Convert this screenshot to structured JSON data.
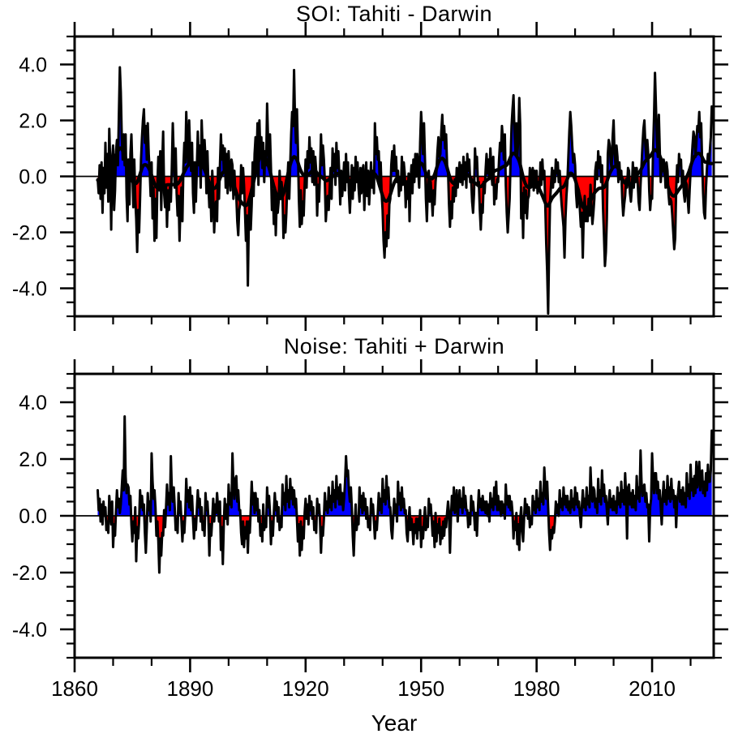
{
  "figure": {
    "background": "#ffffff",
    "x_axis_label": "Year",
    "text_color": "#000000"
  },
  "chart_data": [
    {
      "type": "area",
      "title": "SOI: Tahiti - Darwin",
      "xlabel": "",
      "ylabel": "",
      "x0": 1866.0,
      "dt": 0.25,
      "xlim": [
        1860,
        2026
      ],
      "ylim": [
        -5.0,
        5.0
      ],
      "grid": false,
      "legend": "none",
      "xtick_major": {
        "start": 1860,
        "step": 30,
        "labels": [
          "1860",
          "1890",
          "1920",
          "1950",
          "1980",
          "2010"
        ]
      },
      "xtick_minor_step": 10,
      "ytick_major": {
        "values": [
          -4,
          -2,
          0,
          2,
          4
        ],
        "labels": [
          "-4.0",
          "-2.0",
          "0.0",
          "2.0",
          "4.0"
        ]
      },
      "ytick_minor_step": 0.5,
      "positive_color": "#0000ff",
      "negative_color": "#ff0000",
      "line_color": "#000000",
      "smoothed_line": true,
      "smooth_window": 13,
      "smooth_passes": 2,
      "show_x_labels": false,
      "values": [
        -0.1,
        -0.6,
        0.4,
        -0.8,
        0.5,
        -1.3,
        0.3,
        -0.6,
        1.2,
        -0.4,
        0.8,
        -0.9,
        1.7,
        0.5,
        -1.9,
        0.6,
        1.1,
        -1.2,
        -0.5,
        0.9,
        1.3,
        0.4,
        2.2,
        3.9,
        3.0,
        1.4,
        0.6,
        1.5,
        0.4,
        1.5,
        -0.7,
        -1.6,
        0.6,
        -1.0,
        0.8,
        1.5,
        0.3,
        -1.1,
        0.6,
        -0.8,
        -1.5,
        -2.7,
        -1.2,
        -2.0,
        -0.8,
        0.6,
        1.4,
        2.0,
        2.4,
        1.2,
        1.8,
        0.6,
        1.9,
        0.8,
        0.2,
        -0.7,
        0.5,
        -1.5,
        -0.4,
        -2.3,
        -0.8,
        -2.2,
        -0.3,
        0.7,
        -0.5,
        0.9,
        -1.2,
        0.4,
        1.6,
        -0.6,
        -1.1,
        -0.3,
        -1.8,
        -0.5,
        -1.2,
        -0.4,
        -0.9,
        0.3,
        1.9,
        0.7,
        -0.4,
        1.0,
        -0.6,
        -1.4,
        -0.7,
        -2.3,
        -1.0,
        -0.4,
        -1.6,
        0.3,
        1.2,
        0.5,
        2.3,
        1.1,
        0.4,
        2.0,
        0.9,
        0.2,
        1.2,
        -0.6,
        -1.3,
        0.5,
        -0.9,
        0.3,
        1.6,
        0.4,
        1.1,
        -0.4,
        2.0,
        1.0,
        0.3,
        1.3,
        0.6,
        -0.6,
        0.9,
        -0.3,
        -1.1,
        -0.4,
        -1.6,
        0.2,
        -0.6,
        -2.0,
        -1.1,
        -0.9,
        -1.6,
        0.3,
        -0.8,
        0.4,
        1.5,
        0.6,
        1.1,
        0.2,
        1.0,
        -0.4,
        0.8,
        -0.6,
        0.9,
        0.1,
        -0.5,
        0.6,
        0.4,
        -0.8,
        0.2,
        -0.6,
        -0.7,
        -1.6,
        -2.1,
        -1.2,
        -1.0,
        0.4,
        -0.6,
        0.3,
        -0.3,
        -1.2,
        -2.3,
        -1.4,
        -3.9,
        -1.6,
        -0.8,
        -1.9,
        -1.0,
        0.5,
        -0.7,
        0.8,
        1.4,
        0.3,
        1.9,
        -0.3,
        2.0,
        0.8,
        1.4,
        0.3,
        1.2,
        -0.2,
        0.9,
        0.4,
        2.6,
        1.3,
        0.5,
        1.5,
        0.3,
        -1.2,
        -0.5,
        -1.7,
        -0.4,
        -2.1,
        -0.8,
        -1.3,
        -0.9,
        0.2,
        -0.7,
        -0.2,
        -0.6,
        -2.2,
        -1.4,
        -2.0,
        -1.3,
        -0.2,
        0.5,
        -0.8,
        0.4,
        1.5,
        2.3,
        1.8,
        3.8,
        2.0,
        1.2,
        2.4,
        1.0,
        -0.8,
        -1.8,
        -0.5,
        -1.7,
        -0.9,
        -1.4,
        -0.3,
        0.6,
        -0.4,
        0.9,
        0.3,
        1.4,
        0.5,
        1.0,
        -0.2,
        0.9,
        -0.3,
        0.7,
        0.2,
        -1.4,
        -0.3,
        -0.9,
        0.2,
        1.5,
        0.4,
        1.1,
        0.6,
        -0.2,
        -1.6,
        -1.0,
        -0.7,
        -1.2,
        -0.4,
        0.3,
        -0.8,
        1.0,
        0.2,
        0.8,
        -0.3,
        1.2,
        0.3,
        0.9,
        0.1,
        -1.0,
        0.2,
        -0.7,
        -0.2,
        0.5,
        -0.5,
        0.8,
        -0.2,
        0.5,
        -0.6,
        -1.3,
        -0.4,
        0.4,
        -0.8,
        0.3,
        -0.5,
        0.7,
        -0.2,
        0.5,
        -0.4,
        -0.9,
        0.3,
        -0.6,
        0.2,
        0.4,
        -1.2,
        -0.3,
        0.5,
        -0.7,
        0.2,
        -1.0,
        -0.3,
        0.5,
        -0.4,
        0.2,
        -0.6,
        1.9,
        0.8,
        1.4,
        0.6,
        0.9,
        -0.2,
        0.5,
        -0.6,
        -1.2,
        -2.3,
        -2.9,
        -2.0,
        -2.5,
        -1.4,
        -2.2,
        -1.0,
        -0.8,
        0.4,
        0.9,
        0.2,
        1.1,
        0.2,
        0.7,
        -0.2,
        0.2,
        -0.7,
        -0.1,
        -0.5,
        0.7,
        -0.3,
        0.5,
        0.1,
        -1.1,
        -0.3,
        -0.8,
        0.1,
        -1.6,
        -0.2,
        0.4,
        -0.6,
        0.6,
        -0.2,
        0.8,
        0.0,
        0.8,
        0.2,
        -0.4,
        1.2,
        2.3,
        1.6,
        0.8,
        1.9,
        0.6,
        -0.8,
        -1.6,
        -0.4,
        0.2,
        -0.9,
        -0.2,
        -0.7,
        -1.4,
        -0.5,
        -1.0,
        -0.2,
        0.2,
        0.9,
        1.4,
        0.7,
        0.8,
        1.6,
        2.2,
        1.3,
        1.8,
        1.0,
        1.5,
        0.4,
        0.2,
        -1.0,
        -1.8,
        -0.9,
        -1.5,
        -0.4,
        -0.9,
        -0.1,
        -0.7,
        0.3,
        -0.4,
        0.1,
        0.5,
        -0.2,
        0.4,
        -0.3,
        0.7,
        -0.1,
        0.5,
        -0.4,
        0.8,
        0.2,
        0.6,
        -0.2,
        -0.1,
        -0.9,
        -1.3,
        -0.6,
        1.0,
        0.3,
        0.7,
        -0.2,
        -0.2,
        -1.2,
        -1.9,
        -1.0,
        -1.3,
        -0.2,
        -0.6,
        0.2,
        0.8,
        0.1,
        0.6,
        -0.1,
        1.0,
        0.2,
        -0.3,
        0.7,
        -1.0,
        -0.3,
        -0.8,
        -0.1,
        -0.2,
        0.6,
        1.2,
        0.9,
        1.8,
        1.3,
        0.6,
        1.5,
        -0.3,
        -1.3,
        -2.0,
        -1.4,
        -0.8,
        0.6,
        1.8,
        2.4,
        2.9,
        1.6,
        0.9,
        1.9,
        0.7,
        1.4,
        2.8,
        1.8,
        -1.5,
        -0.6,
        -2.2,
        -0.4,
        -1.3,
        -0.5,
        -1.5,
        -0.8,
        -0.7,
        0.3,
        -0.4,
        0.1,
        0.3,
        -0.5,
        0.2,
        -0.4,
        0.2,
        -0.6,
        -0.2,
        -0.5,
        0.5,
        -0.3,
        0.6,
        -0.1,
        0.2,
        -1.0,
        -2.4,
        -3.4,
        -4.9,
        -2.6,
        -0.9,
        -0.3,
        0.3,
        -0.4,
        0.2,
        -0.2,
        0.6,
        0.1,
        0.5,
        -0.2,
        0.2,
        -0.5,
        -1.0,
        -1.4,
        -1.8,
        -2.9,
        -1.5,
        -0.7,
        -0.2,
        0.7,
        1.6,
        2.3,
        1.8,
        1.1,
        0.5,
        0.8,
        0.4,
        -0.6,
        -1.1,
        -0.4,
        -0.5,
        -1.2,
        -1.8,
        -1.3,
        -2.9,
        -1.3,
        -0.7,
        -1.6,
        -1.2,
        -1.6,
        -0.8,
        -1.4,
        -0.3,
        -1.1,
        -1.7,
        -1.3,
        -0.8,
        0.2,
        0.5,
        -0.1,
        0.9,
        0.3,
        0.7,
        -0.2,
        0.4,
        -1.1,
        -2.1,
        -3.2,
        -2.7,
        -1.5,
        0.8,
        1.3,
        1.1,
        0.5,
        0.3,
        1.4,
        2.0,
        0.8,
        0.4,
        1.1,
        0.7,
        -0.2,
        0.5,
        -0.1,
        0.2,
        -0.8,
        -1.4,
        -1.0,
        -0.7,
        -0.1,
        -0.4,
        0.3,
        0.2,
        -0.6,
        -0.9,
        -0.4,
        0.5,
        -0.4,
        0.3,
        -0.2,
        0.3,
        -0.2,
        -0.9,
        -1.2,
        -0.3,
        0.4,
        1.1,
        1.7,
        2.0,
        1.1,
        0.6,
        1.3,
        0.8,
        -0.5,
        -1.2,
        -0.7,
        -0.8,
        0.9,
        2.1,
        3.7,
        2.5,
        1.2,
        0.7,
        2.2,
        0.9,
        -0.2,
        0.4,
        0.2,
        0.6,
        0.3,
        -0.4,
        0.5,
        0.2,
        -0.6,
        -1.0,
        -0.8,
        -0.9,
        -1.4,
        -2.0,
        -2.6,
        -2.2,
        -0.5,
        0.4,
        -0.2,
        0.8,
        0.4,
        0.6,
        -0.3,
        0.2,
        -0.6,
        -0.9,
        -0.2,
        -0.3,
        -0.8,
        -1.3,
        -0.5,
        0.2,
        0.5,
        1.1,
        1.6,
        1.4,
        0.7,
        1.2,
        1.8,
        1.6,
        2.3,
        1.4,
        1.9,
        0.5,
        -0.6,
        -1.3,
        -1.5,
        -0.4,
        0.3,
        0.8,
        0.5,
        0.9,
        1.4,
        2.5
      ]
    },
    {
      "type": "area",
      "title": "Noise: Tahiti + Darwin",
      "xlabel": "Year",
      "ylabel": "",
      "x0": 1866.0,
      "dt": 0.25,
      "xlim": [
        1860,
        2026
      ],
      "ylim": [
        -5.0,
        5.0
      ],
      "grid": false,
      "legend": "none",
      "xtick_major": {
        "start": 1860,
        "step": 30,
        "labels": [
          "1860",
          "1890",
          "1920",
          "1950",
          "1980",
          "2010"
        ]
      },
      "xtick_minor_step": 10,
      "ytick_major": {
        "values": [
          -4,
          -2,
          0,
          2,
          4
        ],
        "labels": [
          "-4.0",
          "-2.0",
          "0.0",
          "2.0",
          "4.0"
        ]
      },
      "ytick_minor_step": 0.5,
      "positive_color": "#0000ff",
      "negative_color": "#ff0000",
      "line_color": "#000000",
      "smoothed_line": false,
      "smooth_window": 0,
      "smooth_passes": 0,
      "show_x_labels": true,
      "values": [
        0.9,
        0.2,
        0.6,
        -0.2,
        0.4,
        -0.3,
        0.5,
        0.0,
        0.3,
        -0.5,
        -0.2,
        -0.6,
        0.7,
        0.2,
        -0.3,
        0.5,
        -1.1,
        -0.3,
        -0.7,
        0.2,
        0.9,
        0.3,
        0.6,
        0.1,
        0.4,
        1.0,
        1.6,
        0.9,
        3.5,
        1.4,
        0.8,
        1.1,
        1.0,
        0.4,
        0.7,
        -0.3,
        -0.9,
        -0.2,
        -0.6,
        0.3,
        -1.6,
        -0.4,
        -0.8,
        -0.2,
        0.9,
        0.3,
        0.7,
        0.2,
        0.4,
        -0.6,
        -1.3,
        -0.4,
        0.8,
        0.2,
        0.5,
        -0.2,
        2.2,
        1.2,
        0.6,
        0.9,
        0.3,
        -0.7,
        -0.2,
        -0.9,
        -2.0,
        -0.8,
        -1.4,
        -0.6,
        -0.7,
        0.2,
        -0.4,
        0.3,
        1.1,
        0.4,
        0.8,
        0.2,
        2.1,
        0.9,
        0.5,
        1.0,
        0.3,
        -0.5,
        -0.1,
        -0.6,
        0.8,
        0.1,
        0.5,
        -0.2,
        -0.9,
        -0.2,
        -0.6,
        0.1,
        1.3,
        0.5,
        0.9,
        0.3,
        1.0,
        0.2,
        0.7,
        -0.1,
        -0.8,
        -0.1,
        -0.5,
        0.2,
        0.9,
        0.3,
        0.6,
        -0.2,
        0.3,
        -0.5,
        -0.2,
        -0.7,
        0.8,
        0.2,
        0.5,
        -0.1,
        -1.4,
        -0.3,
        -0.7,
        -0.1,
        0.6,
        -0.2,
        0.4,
        0.1,
        0.8,
        0.3,
        -0.2,
        0.5,
        -1.2,
        -0.4,
        -1.7,
        -0.3,
        0.6,
        -0.1,
        0.4,
        -0.3,
        1.1,
        0.4,
        0.8,
        0.3,
        2.2,
        1.1,
        0.6,
        1.3,
        1.4,
        0.5,
        0.9,
        0.2,
        0.2,
        -0.6,
        -1.0,
        -0.2,
        -1.1,
        -0.4,
        -0.8,
        -0.2,
        -1.3,
        -0.2,
        -0.6,
        0.2,
        1.2,
        0.4,
        0.8,
        0.1,
        0.8,
        0.2,
        0.6,
        -0.2,
        0.2,
        -0.7,
        -0.3,
        -0.9,
        0.4,
        -0.5,
        -0.1,
        -0.4,
        1.0,
        0.3,
        0.7,
        0.1,
        -1.0,
        -0.2,
        -0.7,
        0.1,
        0.8,
        0.2,
        0.5,
        -0.2,
        0.3,
        -0.5,
        -0.1,
        -0.4,
        1.1,
        0.4,
        0.8,
        0.2,
        1.4,
        0.5,
        0.9,
        0.3,
        1.3,
        0.6,
        1.0,
        0.4,
        0.9,
        0.3,
        0.6,
        -0.1,
        -0.9,
        -0.3,
        -1.4,
        -0.2,
        -1.2,
        -0.4,
        -0.8,
        0.1,
        0.6,
        -0.1,
        0.4,
        -0.3,
        0.7,
        0.2,
        0.5,
        -0.1,
        0.3,
        -0.5,
        -0.2,
        -0.6,
        0.6,
        0.1,
        0.4,
        -0.2,
        -1.3,
        -0.4,
        -0.7,
        -0.1,
        0.8,
        0.2,
        0.5,
        0.1,
        1.0,
        0.3,
        0.7,
        0.2,
        1.2,
        0.5,
        0.9,
        0.3,
        1.4,
        0.6,
        1.0,
        0.4,
        1.1,
        0.4,
        0.8,
        0.2,
        0.6,
        1.2,
        2.1,
        1.4,
        1.6,
        0.9,
        0.5,
        1.0,
        0.3,
        -0.7,
        -1.4,
        -0.4,
        0.4,
        -0.5,
        -0.1,
        -0.3,
        1.0,
        0.3,
        0.7,
        0.1,
        0.8,
        0.2,
        0.6,
        -0.1,
        0.3,
        -0.4,
        -0.1,
        -0.5,
        0.6,
        0.1,
        0.4,
        -0.2,
        -0.8,
        -0.2,
        -0.5,
        0.1,
        0.8,
        0.2,
        0.6,
        0.1,
        1.3,
        0.5,
        0.9,
        0.4,
        1.4,
        0.6,
        1.0,
        0.3,
        0.3,
        -0.5,
        -0.8,
        -0.1,
        0.6,
        0.1,
        0.4,
        -0.2,
        1.2,
        0.4,
        0.8,
        0.2,
        1.0,
        0.3,
        0.6,
        0.1,
        0.2,
        -0.6,
        -0.9,
        -0.2,
        0.3,
        -0.5,
        -0.1,
        -0.4,
        -1.0,
        -0.3,
        -0.6,
        -0.1,
        -0.8,
        -0.1,
        -0.5,
        0.2,
        -1.1,
        -0.4,
        -0.8,
        -0.2,
        0.3,
        -0.5,
        -0.1,
        -0.4,
        0.6,
        0.1,
        0.4,
        -0.1,
        -0.7,
        -0.2,
        -1.1,
        0.1,
        -0.9,
        -0.3,
        -0.6,
        -0.1,
        -1.0,
        -0.4,
        -0.8,
        -0.2,
        -0.7,
        -0.1,
        -0.4,
        0.1,
        0.5,
        0.1,
        -1.3,
        -0.1,
        0.7,
        0.2,
        1.0,
        0.1,
        0.3,
        0.9,
        -0.2,
        0.4,
        0.9,
        0.3,
        0.6,
        0.1,
        1.0,
        0.3,
        0.7,
        0.2,
        0.2,
        -0.4,
        0.1,
        -0.3,
        0.7,
        0.2,
        0.5,
        0.1,
        -0.5,
        0.1,
        -0.7,
        0.2,
        0.9,
        0.3,
        0.6,
        0.2,
        0.7,
        0.2,
        0.5,
        0.1,
        0.5,
        0.0,
        0.4,
        -0.2,
        0.8,
        0.3,
        0.6,
        0.2,
        1.0,
        0.4,
        1.2,
        0.2,
        0.7,
        0.2,
        0.5,
        0.0,
        0.5,
        0.1,
        0.4,
        -0.1,
        1.1,
        0.4,
        0.7,
        0.3,
        0.7,
        0.2,
        0.5,
        0.1,
        -0.8,
        -0.2,
        -0.5,
        0.1,
        -1.0,
        -0.3,
        -1.2,
        -0.1,
        0.3,
        -0.5,
        -0.9,
        -0.1,
        0.6,
        0.1,
        0.4,
        -0.1,
        0.3,
        -0.4,
        -0.1,
        -0.3,
        0.7,
        0.2,
        0.5,
        0.1,
        0.9,
        0.3,
        0.6,
        0.2,
        1.2,
        0.5,
        0.8,
        0.4,
        1.7,
        1.0,
        0.6,
        1.2,
        0.3,
        -0.6,
        -1.2,
        -0.5,
        -0.8,
        -0.4,
        -0.6,
        -0.2,
        0.5,
        0.1,
        0.4,
        0.0,
        0.9,
        0.3,
        0.6,
        0.2,
        1.0,
        0.4,
        0.7,
        0.3,
        0.7,
        0.2,
        0.5,
        0.1,
        0.9,
        0.3,
        0.6,
        0.2,
        1.0,
        0.4,
        0.8,
        0.3,
        0.5,
        0.0,
        -0.4,
        0.3,
        0.9,
        0.3,
        0.6,
        0.2,
        1.0,
        0.4,
        0.7,
        0.3,
        1.7,
        0.8,
        0.5,
        1.0,
        0.9,
        0.3,
        0.6,
        0.1,
        1.3,
        0.5,
        0.9,
        0.4,
        1.6,
        0.7,
        1.1,
        0.5,
        0.7,
        0.2,
        -0.3,
        0.5,
        0.9,
        0.3,
        0.6,
        0.2,
        0.7,
        0.2,
        0.5,
        0.1,
        1.0,
        0.4,
        0.8,
        0.3,
        1.2,
        0.5,
        0.9,
        0.4,
        1.5,
        0.7,
        -0.8,
        1.0,
        1.1,
        0.4,
        0.8,
        0.3,
        0.9,
        0.3,
        0.7,
        0.2,
        1.4,
        0.6,
        1.0,
        0.5,
        2.3,
        1.2,
        0.7,
        1.0,
        1.1,
        0.5,
        0.8,
        0.3,
        0.4,
        -0.9,
        0.3,
        0.6,
        2.2,
        1.3,
        0.8,
        1.5,
        1.5,
        0.8,
        1.2,
        0.6,
        0.9,
        0.3,
        -0.3,
        0.6,
        1.2,
        0.5,
        0.9,
        0.4,
        1.4,
        0.6,
        1.0,
        0.5,
        1.3,
        0.6,
        0.9,
        0.3,
        0.7,
        -0.4,
        0.5,
        0.8,
        1.2,
        0.5,
        0.9,
        0.4,
        1.0,
        0.4,
        0.8,
        0.3,
        1.5,
        0.7,
        1.1,
        0.6,
        1.8,
        0.9,
        1.3,
        0.7,
        1.4,
        0.8,
        1.9,
        1.0,
        1.3,
        1.9,
        0.9,
        1.5,
        1.6,
        0.8,
        1.2,
        0.7,
        1.5,
        0.9,
        1.8,
        1.2,
        1.2,
        1.6,
        3.0
      ]
    }
  ]
}
